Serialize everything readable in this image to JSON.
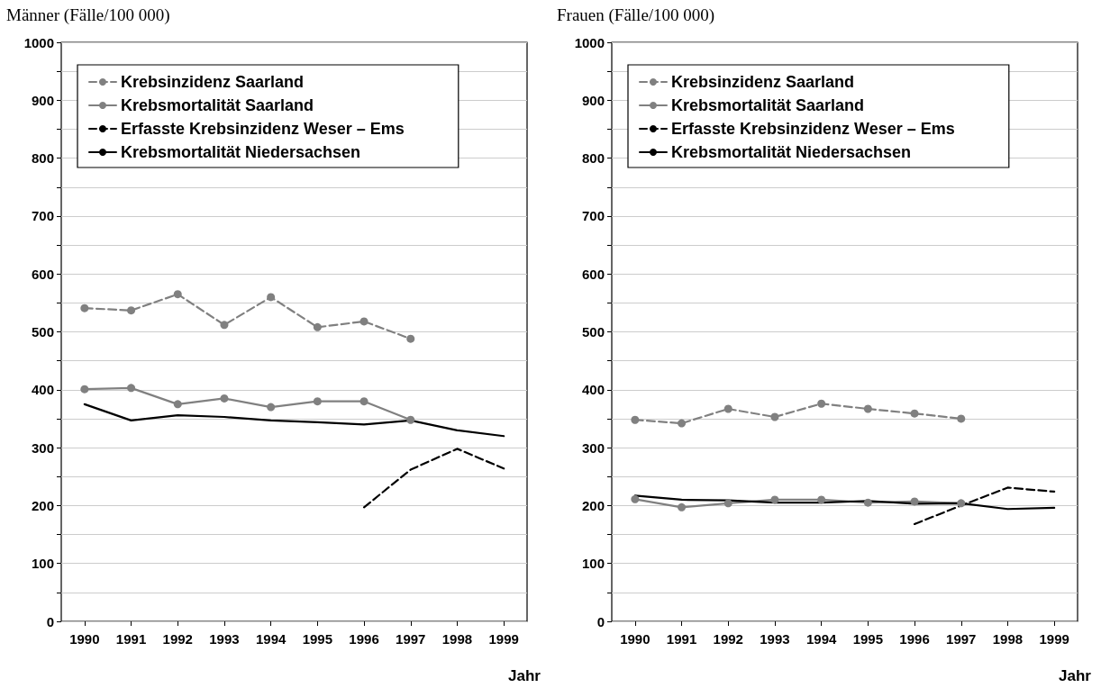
{
  "chart_data": [
    {
      "type": "line",
      "title": "Männer (Fälle/100 000)",
      "xlabel": "Jahr",
      "categories": [
        "1990",
        "1991",
        "1992",
        "1993",
        "1994",
        "1995",
        "1996",
        "1997",
        "1998",
        "1999"
      ],
      "series": [
        {
          "name": "Krebsinzidenz Saarland",
          "color": "#808080",
          "marker": "circle",
          "line_style": "dashed",
          "values": [
            541,
            537,
            565,
            512,
            560,
            508,
            518,
            488,
            null,
            null
          ]
        },
        {
          "name": "Krebsmortalität Saarland",
          "color": "#808080",
          "marker": "circle",
          "line_style": "solid",
          "values": [
            401,
            403,
            375,
            385,
            370,
            380,
            380,
            348,
            null,
            null
          ]
        },
        {
          "name": "Erfasste Krebsinzidenz Weser – Ems",
          "color": "#000000",
          "marker": "none",
          "line_style": "dashed",
          "values": [
            null,
            null,
            null,
            null,
            null,
            null,
            197,
            262,
            298,
            264
          ]
        },
        {
          "name": "Krebsmortalität Niedersachsen",
          "color": "#000000",
          "marker": "none",
          "line_style": "solid",
          "values": [
            375,
            347,
            356,
            353,
            347,
            344,
            340,
            347,
            330,
            320
          ]
        }
      ],
      "ylim": [
        0,
        1000
      ],
      "yticks": [
        0,
        {
          "value": 50,
          "label": null
        },
        100,
        {
          "value": 150,
          "label": null
        },
        200,
        {
          "value": 250,
          "label": null
        },
        300,
        {
          "value": 350,
          "label": null
        },
        400,
        {
          "value": 450,
          "label": null
        },
        500,
        {
          "value": 550,
          "label": null
        },
        600,
        {
          "value": 650,
          "label": null
        },
        700,
        {
          "value": 750,
          "label": null
        },
        800,
        {
          "value": 850,
          "label": null
        },
        900,
        {
          "value": 950,
          "label": null
        },
        1000
      ],
      "grid": "y",
      "legend": "top left"
    },
    {
      "type": "line",
      "title": "Frauen (Fälle/100 000)",
      "xlabel": "Jahr",
      "categories": [
        "1990",
        "1991",
        "1992",
        "1993",
        "1994",
        "1995",
        "1996",
        "1997",
        "1998",
        "1999"
      ],
      "series": [
        {
          "name": "Krebsinzidenz Saarland",
          "color": "#808080",
          "marker": "circle",
          "line_style": "dashed",
          "values": [
            348,
            342,
            367,
            353,
            376,
            367,
            359,
            350,
            null,
            null
          ]
        },
        {
          "name": "Krebsmortalität Saarland",
          "color": "#808080",
          "marker": "circle",
          "line_style": "solid",
          "values": [
            211,
            197,
            204,
            210,
            210,
            205,
            207,
            204,
            null,
            null
          ]
        },
        {
          "name": "Erfasste Krebsinzidenz Weser – Ems",
          "color": "#000000",
          "marker": "none",
          "line_style": "dashed",
          "values": [
            null,
            null,
            null,
            null,
            null,
            null,
            168,
            200,
            231,
            224
          ]
        },
        {
          "name": "Krebsmortalität Niedersachsen",
          "color": "#000000",
          "marker": "none",
          "line_style": "solid",
          "values": [
            217,
            210,
            209,
            205,
            205,
            208,
            203,
            204,
            194,
            196
          ]
        }
      ],
      "ylim": [
        0,
        1000
      ],
      "yticks": [
        0,
        {
          "value": 50,
          "label": null
        },
        100,
        {
          "value": 150,
          "label": null
        },
        200,
        {
          "value": 250,
          "label": null
        },
        300,
        {
          "value": 350,
          "label": null
        },
        400,
        {
          "value": 450,
          "label": null
        },
        500,
        {
          "value": 550,
          "label": null
        },
        600,
        {
          "value": 650,
          "label": null
        },
        700,
        {
          "value": 750,
          "label": null
        },
        800,
        {
          "value": 850,
          "label": null
        },
        900,
        {
          "value": 950,
          "label": null
        },
        1000
      ],
      "grid": "y",
      "legend": "top left"
    }
  ]
}
